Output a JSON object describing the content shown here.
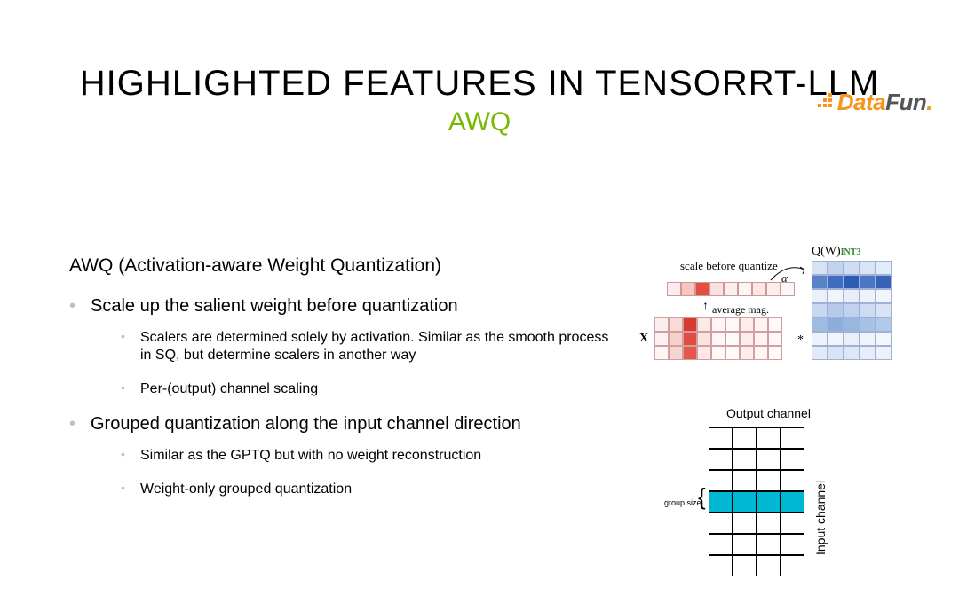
{
  "logo": {
    "d": "D",
    "ata": "ata",
    "fun": "Fun",
    "dot": "."
  },
  "title": "HIGHLIGHTED FEATURES IN TENSORRT-LLM",
  "subtitle": "AWQ",
  "heading": "AWQ (Activation-aware Weight Quantization)",
  "bullets": [
    {
      "text": "Scale up the salient weight before quantization",
      "sub": [
        "Scalers are determined solely by activation. Similar as the smooth process in SQ, but determine scalers in another way",
        "Per-(output) channel scaling"
      ]
    },
    {
      "text": "Grouped quantization along the input channel direction",
      "sub": [
        "Similar as the GPTQ but with no weight reconstruction",
        "Weight-only grouped quantization"
      ]
    }
  ],
  "diag1": {
    "qw_label": "Q(W)",
    "qw_int": "INT3",
    "scale_before": "scale before quantize",
    "alpha": "α",
    "avg_mag": "average mag.",
    "x_label": "X",
    "star": "*",
    "scale_row_colors": [
      "#fdecec",
      "#f8c4c0",
      "#e34d42",
      "#fae0de",
      "#fceeee",
      "#fdf4f4",
      "#fbe6e4",
      "#fceeee",
      "#fdf6f6"
    ],
    "x_grid": {
      "rows": 3,
      "cols": 9,
      "colors": [
        [
          "#fceeed",
          "#fad9d6",
          "#d93a2f",
          "#fceae9",
          "#fef6f6",
          "#fef8f8",
          "#fcecea",
          "#fef4f4",
          "#fefafa"
        ],
        [
          "#fdf2f1",
          "#f7cfcb",
          "#e24c41",
          "#fbe3e1",
          "#fef6f6",
          "#fefafa",
          "#fcecea",
          "#fef4f4",
          "#fef8f8"
        ],
        [
          "#fef6f6",
          "#f8d4d0",
          "#e6564b",
          "#fce8e6",
          "#fef8f8",
          "#fefafa",
          "#fdeeec",
          "#fef6f6",
          "#fefafa"
        ]
      ]
    },
    "w_grid": {
      "rows": 7,
      "cols": 5,
      "colors": [
        [
          "#d7e2f4",
          "#c1d3ef",
          "#cfdcf2",
          "#d9e4f5",
          "#e4ecf8"
        ],
        [
          "#5a82c8",
          "#3f6cbd",
          "#2c5bb4",
          "#4a76c3",
          "#3762b7"
        ],
        [
          "#eaf0fa",
          "#f0f4fb",
          "#e8eef9",
          "#eef2fb",
          "#f2f6fc"
        ],
        [
          "#c9d8f1",
          "#b6cbec",
          "#c0d2ee",
          "#cedbf2",
          "#d8e3f5"
        ],
        [
          "#9fbce3",
          "#8caedd",
          "#97b6e0",
          "#a8c2e6",
          "#b2c9e9"
        ],
        [
          "#eef3fb",
          "#f2f6fc",
          "#eaf0fa",
          "#f0f4fb",
          "#f4f7fd"
        ],
        [
          "#e2eaf7",
          "#d8e3f5",
          "#dee7f6",
          "#e6ecf8",
          "#ecf1fa"
        ]
      ]
    }
  },
  "diag2": {
    "output_label": "Output channel",
    "input_label": "Input channel",
    "group_size": "group size",
    "rows": 7,
    "cols": 4,
    "highlight_row": 3,
    "highlight_color": "#00b8d4",
    "grid_border": "#000000"
  }
}
